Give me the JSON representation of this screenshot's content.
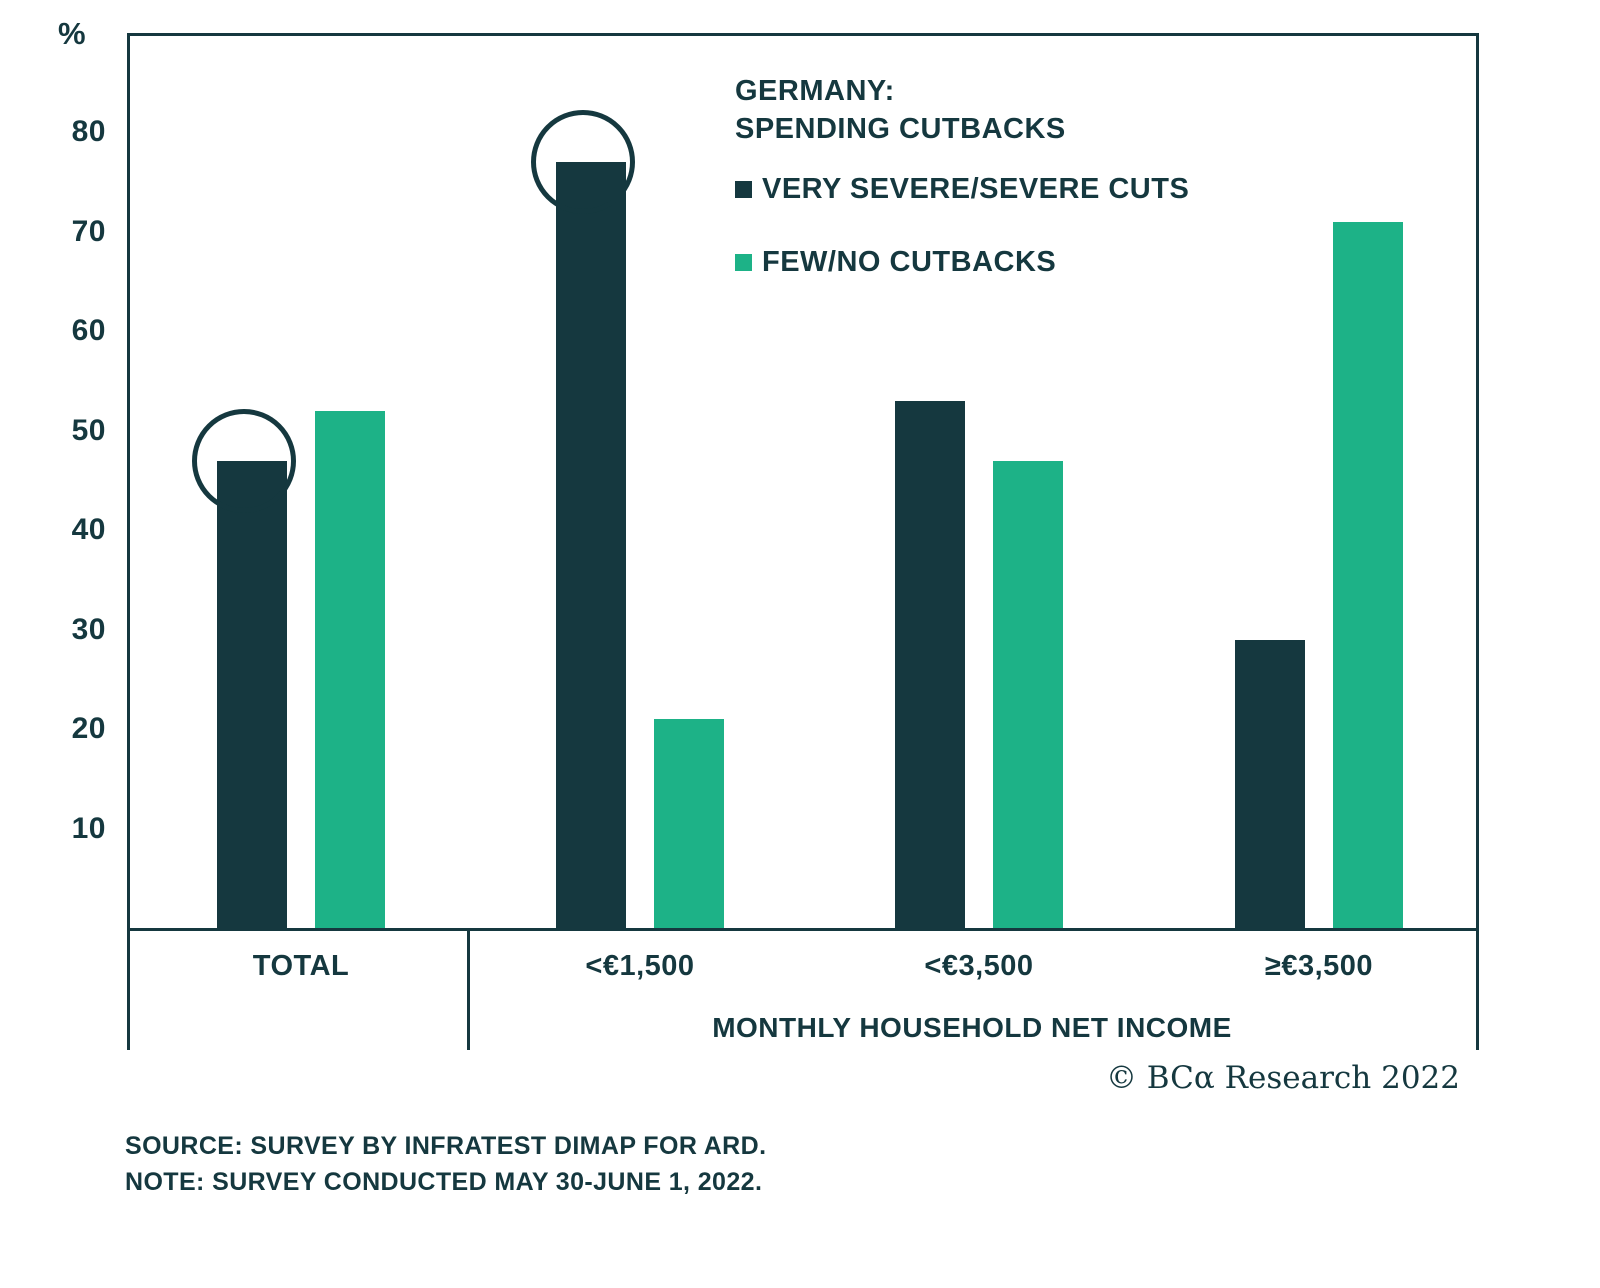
{
  "chart_data": {
    "type": "bar",
    "title_line1": "GERMANY:",
    "title_line2": "SPENDING CUTBACKS",
    "unit_label": "%",
    "categories": [
      "TOTAL",
      "<€1,500",
      "<€3,500",
      "≥€3,500"
    ],
    "series": [
      {
        "name": "VERY SEVERE/SEVERE CUTS",
        "color": "#15383F",
        "values": [
          47,
          77,
          53,
          29
        ]
      },
      {
        "name": "FEW/NO CUTBACKS",
        "color": "#1DB287",
        "values": [
          52,
          21,
          47,
          71
        ]
      }
    ],
    "xlabel": "MONTHLY HOUSEHOLD NET INCOME",
    "ylabel": "%",
    "ylim": [
      0,
      90
    ],
    "yticks": [
      10,
      20,
      30,
      40,
      50,
      60,
      70,
      80
    ],
    "grid": false,
    "legend_position": "top-right-inside",
    "annotations": {
      "circled_bars": [
        {
          "category": "TOTAL",
          "series": "VERY SEVERE/SEVERE CUTS"
        },
        {
          "category": "<€1,500",
          "series": "VERY SEVERE/SEVERE CUTS"
        }
      ]
    }
  },
  "footer": {
    "copyright": "© BCα Research 2022",
    "source_note_line1": "SOURCE: SURVEY BY INFRATEST DIMAP FOR ARD.",
    "source_note_line2": "NOTE: SURVEY CONDUCTED MAY 30-JUNE 1, 2022."
  }
}
